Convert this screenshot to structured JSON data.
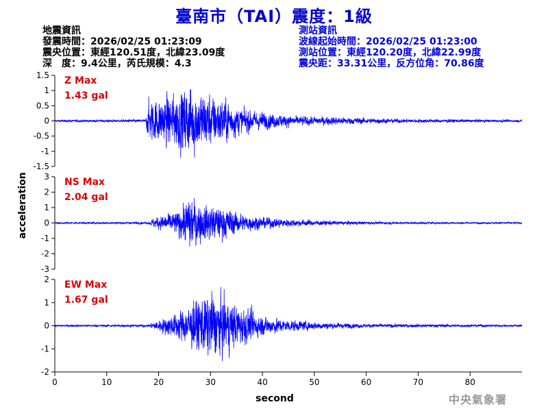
{
  "header": {
    "title": "臺南市（TAI）震度：1級"
  },
  "quake_info": {
    "heading": "地震資訊",
    "origin_time": "發震時間：2026/02/25 01:23:09",
    "epicenter": "震央位置：東經120.51度，北緯23.09度",
    "depth_magnitude": "深　度：9.4公里，芮氏規模：4.3"
  },
  "station_info": {
    "heading": "測站資訊",
    "wave_start": "波線起始時間：2026/02/25 01:23:00",
    "location": "測站位置：東經120.20度，北緯22.99度",
    "distance": "震央距：33.31公里，反方位角：70.86度"
  },
  "watermark": "中央氣象署",
  "colors": {
    "trace": "#0000ff",
    "max_label": "#dd0000",
    "title": "#0000cc"
  },
  "chart_data": {
    "type": "line",
    "xlabel": "second",
    "ylabel": "acceleration",
    "xlim": [
      0,
      90
    ],
    "xticks": [
      0,
      10,
      20,
      30,
      40,
      50,
      60,
      70,
      80
    ],
    "panels": [
      {
        "name": "Z",
        "max_label": "Z Max",
        "max_value": "1.43 gal",
        "ylim": [
          -1.5,
          1.5
        ],
        "yticks": [
          -1.5,
          -1,
          -0.5,
          0,
          0.5,
          1,
          1.5
        ],
        "ytick_labels": [
          "-1.5",
          "-1",
          "-0.5",
          "0",
          "0.5",
          "1",
          "1.5"
        ],
        "envelope": {
          "t": [
            0,
            17.5,
            18,
            21,
            24,
            26,
            28,
            31,
            33,
            35,
            38,
            42,
            46,
            50,
            56,
            62,
            70,
            80,
            90
          ],
          "a": [
            0.03,
            0.04,
            0.55,
            0.65,
            0.8,
            1.0,
            0.85,
            0.65,
            0.6,
            0.4,
            0.28,
            0.2,
            0.14,
            0.12,
            0.1,
            0.07,
            0.05,
            0.04,
            0.03
          ]
        }
      },
      {
        "name": "NS",
        "max_label": "NS Max",
        "max_value": "2.04 gal",
        "ylim": [
          -3,
          3
        ],
        "yticks": [
          -3,
          -2,
          -1,
          0,
          1,
          2,
          3
        ],
        "ytick_labels": [
          "-3",
          "-2",
          "-1",
          "0",
          "1",
          "2",
          "3"
        ],
        "envelope": {
          "t": [
            0,
            18,
            19,
            22,
            24.5,
            26,
            28,
            31,
            33,
            36,
            40,
            45,
            50,
            56,
            62,
            70,
            80,
            90
          ],
          "a": [
            0.03,
            0.04,
            0.18,
            0.35,
            0.55,
            1.0,
            0.75,
            0.65,
            0.55,
            0.35,
            0.22,
            0.15,
            0.1,
            0.07,
            0.05,
            0.04,
            0.03,
            0.03
          ]
        }
      },
      {
        "name": "EW",
        "max_label": "EW Max",
        "max_value": "1.67 gal",
        "ylim": [
          -2,
          2
        ],
        "yticks": [
          -2,
          -1,
          0,
          1,
          2
        ],
        "ytick_labels": [
          "-2",
          "-1",
          "0",
          "1",
          "2"
        ],
        "envelope": {
          "t": [
            0,
            18,
            19,
            22,
            25,
            27,
            30,
            32,
            34,
            36,
            40,
            44,
            48,
            54,
            60,
            70,
            80,
            90
          ],
          "a": [
            0.03,
            0.04,
            0.12,
            0.3,
            0.55,
            0.75,
            1.0,
            0.9,
            0.75,
            0.6,
            0.3,
            0.2,
            0.14,
            0.09,
            0.06,
            0.05,
            0.04,
            0.03
          ]
        }
      }
    ]
  }
}
